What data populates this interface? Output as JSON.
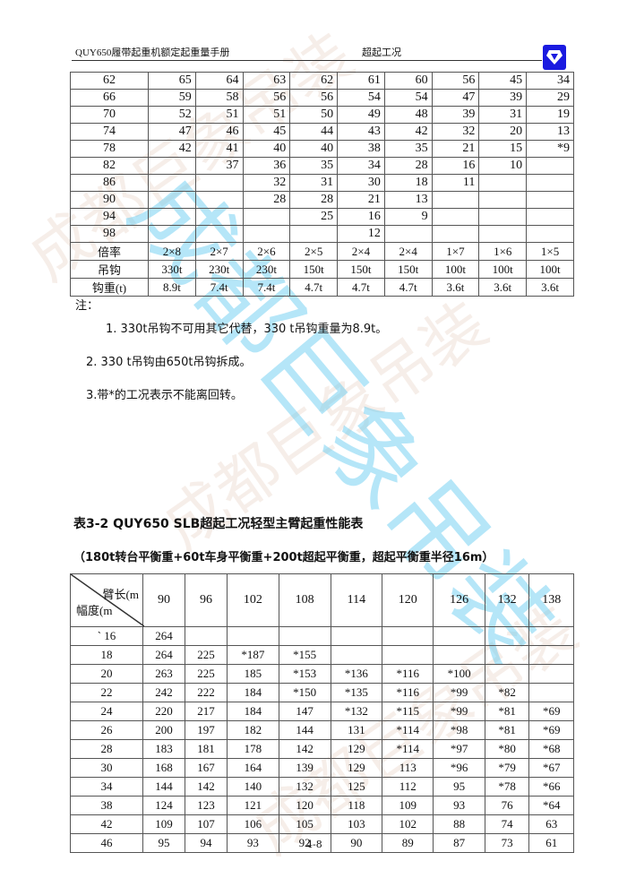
{
  "header": {
    "left": "QUY650履带起重机额定起重量手册",
    "right": "超起工况",
    "logo_color": "#1a1ae0"
  },
  "watermark": "成都巨象吊装",
  "table1": {
    "rows": [
      [
        "62",
        "65",
        "64",
        "63",
        "62",
        "61",
        "60",
        "56",
        "45",
        "34"
      ],
      [
        "66",
        "59",
        "58",
        "56",
        "56",
        "54",
        "54",
        "47",
        "39",
        "29"
      ],
      [
        "70",
        "52",
        "51",
        "51",
        "50",
        "49",
        "48",
        "39",
        "31",
        "19"
      ],
      [
        "74",
        "47",
        "46",
        "45",
        "44",
        "43",
        "42",
        "32",
        "20",
        "13"
      ],
      [
        "78",
        "42",
        "41",
        "40",
        "40",
        "38",
        "35",
        "21",
        "15",
        "*9"
      ],
      [
        "82",
        "",
        "37",
        "36",
        "35",
        "34",
        "28",
        "16",
        "10",
        ""
      ],
      [
        "86",
        "",
        "",
        "32",
        "31",
        "30",
        "18",
        "11",
        "",
        ""
      ],
      [
        "90",
        "",
        "",
        "28",
        "28",
        "21",
        "13",
        "",
        "",
        ""
      ],
      [
        "94",
        "",
        "",
        "",
        "25",
        "16",
        "9",
        "",
        "",
        ""
      ],
      [
        "98",
        "",
        "",
        "",
        "",
        "12",
        "",
        "",
        "",
        ""
      ]
    ],
    "footer_rows": [
      [
        "倍率",
        "2×8",
        "2×7",
        "2×6",
        "2×5",
        "2×4",
        "2×4",
        "1×7",
        "1×6",
        "1×5"
      ],
      [
        "吊钩",
        "330t",
        "230t",
        "230t",
        "150t",
        "150t",
        "150t",
        "100t",
        "100t",
        "100t"
      ],
      [
        "钩重(t)",
        "8.9t",
        "7.4t",
        "7.4t",
        "4.7t",
        "4.7t",
        "4.7t",
        "3.6t",
        "3.6t",
        "3.6t"
      ]
    ]
  },
  "notes": {
    "label": "注：",
    "items": [
      "1. 330t吊钩不可用其它代替，330 t吊钩重量为8.9t。",
      "2. 330 t吊钩由650t吊钩拆成。",
      "3.带*的工况表示不能离回转。"
    ]
  },
  "table2": {
    "title": "表3-2 QUY650 SLB超起工况轻型主臂起重性能表",
    "subtitle": "（180t转台平衡重+60t车身平衡重+200t超起平衡重，超起平衡重半径16m）",
    "corner_top": "臂长(m",
    "corner_bottom": "幅度(m",
    "columns": [
      "90",
      "96",
      "102",
      "108",
      "114",
      "120",
      "126",
      "132",
      "138"
    ],
    "rows": [
      [
        "` 16",
        "264",
        "",
        "",
        "",
        "",
        "",
        "",
        "",
        ""
      ],
      [
        "18",
        "264",
        "225",
        "*187",
        "*155",
        "",
        "",
        "",
        "",
        ""
      ],
      [
        "20",
        "263",
        "225",
        "185",
        "*153",
        "*136",
        "*116",
        "*100",
        "",
        ""
      ],
      [
        "22",
        "242",
        "222",
        "184",
        "*150",
        "*135",
        "*116",
        "*99",
        "*82",
        ""
      ],
      [
        "24",
        "220",
        "217",
        "184",
        "147",
        "*132",
        "*115",
        "*99",
        "*81",
        "*69"
      ],
      [
        "26",
        "200",
        "197",
        "182",
        "144",
        "131",
        "*114",
        "*98",
        "*81",
        "*69"
      ],
      [
        "28",
        "183",
        "181",
        "178",
        "142",
        "129",
        "*114",
        "*97",
        "*80",
        "*68"
      ],
      [
        "30",
        "168",
        "167",
        "164",
        "139",
        "129",
        "113",
        "*96",
        "*79",
        "*67"
      ],
      [
        "34",
        "144",
        "142",
        "140",
        "132",
        "125",
        "112",
        "95",
        "*78",
        "*66"
      ],
      [
        "38",
        "124",
        "123",
        "121",
        "120",
        "118",
        "109",
        "93",
        "76",
        "*64"
      ],
      [
        "42",
        "109",
        "107",
        "106",
        "105",
        "103",
        "102",
        "88",
        "74",
        "63"
      ],
      [
        "46",
        "95",
        "94",
        "93",
        "92",
        "90",
        "89",
        "87",
        "73",
        "61"
      ]
    ]
  },
  "page_number": "4-8"
}
